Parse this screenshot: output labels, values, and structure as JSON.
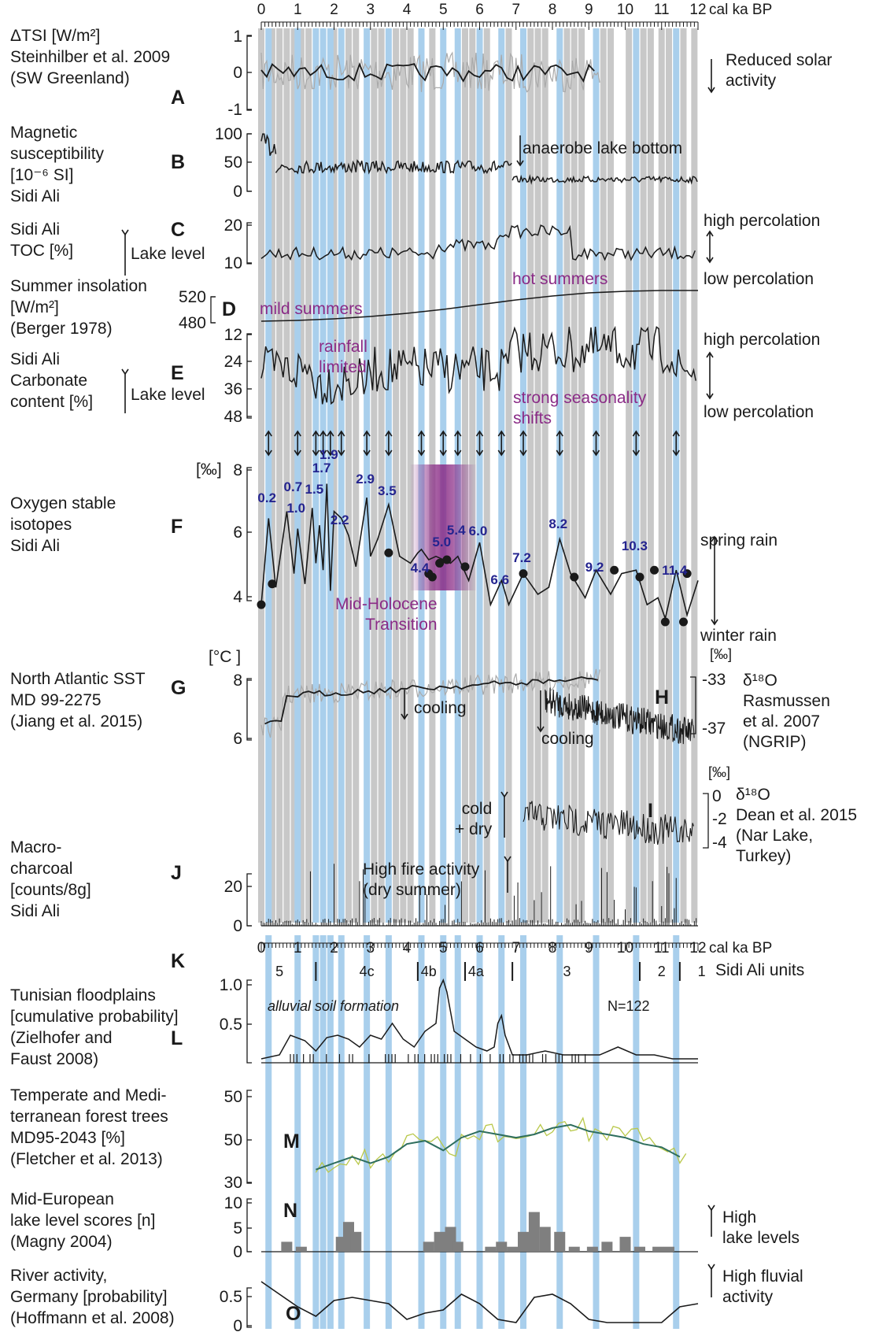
{
  "axis": {
    "unit_top": "cal ka BP",
    "unit_bottom": "cal ka BP",
    "ticks": [
      "0",
      "1",
      "2",
      "3",
      "4",
      "5",
      "6",
      "7",
      "8",
      "9",
      "10",
      "11",
      "12"
    ]
  },
  "colors": {
    "blue_band": "#a9cfec",
    "grey_band": "#c8c8c8",
    "purple": "#8a2b86",
    "isotope_label": "#24248f",
    "forest_mean": "#2e6e5e",
    "forest_raw": "#b9c84a",
    "lake_bars": "#7f7f7f"
  },
  "bands": {
    "blue_ka": [
      0.2,
      1.0,
      1.5,
      1.7,
      1.9,
      2.2,
      2.9,
      3.5,
      4.4,
      5.0,
      5.4,
      6.0,
      6.6,
      7.2,
      8.2,
      9.2,
      10.3,
      11.4
    ],
    "grey_ka": [
      0.0,
      0.3,
      0.5,
      0.7,
      0.9,
      1.1,
      1.3,
      2.0,
      2.4,
      2.6,
      3.1,
      3.3,
      3.7,
      3.9,
      4.1,
      4.7,
      5.6,
      5.8,
      6.2,
      6.8,
      7.4,
      7.6,
      7.8,
      8.4,
      8.6,
      8.8,
      9.4,
      9.6,
      10.1,
      10.5,
      10.7,
      11.0,
      11.2,
      11.6,
      11.9
    ],
    "arrows_ka": [
      0.2,
      1.0,
      1.5,
      1.7,
      1.9,
      2.2,
      2.9,
      3.5,
      4.4,
      5.0,
      5.4,
      6.0,
      6.6,
      7.2,
      8.2,
      9.2,
      10.3,
      11.4
    ]
  },
  "panels": {
    "A": {
      "letter": "A",
      "label": "ΔTSI  [W/m²]\nSteinhilber et al. 2009\n(SW Greenland)",
      "ticks": [
        "1",
        "0",
        "-1"
      ],
      "note": "Reduced solar\nactivity"
    },
    "B": {
      "letter": "B",
      "label": "Magnetic\nsusceptibility\n[10⁻⁶ SI]\nSidi Ali",
      "ticks": [
        "100",
        "50",
        "0"
      ],
      "note": "anaerobe lake bottom"
    },
    "C": {
      "letter": "C",
      "label": "Sidi Ali\nTOC [%]",
      "lake_level": "Lake level",
      "ticks": [
        "20",
        "10"
      ],
      "high": "high percolation",
      "low": "low percolation"
    },
    "D": {
      "letter": "D",
      "label": "Summer insolation\n[W/m²]\n(Berger 1978)",
      "ticks": [
        "520",
        "480"
      ],
      "mild": "mild summers",
      "hot": "hot summers"
    },
    "E": {
      "letter": "E",
      "label": "Sidi Ali\nCarbonate\ncontent [%]",
      "lake_level": "Lake level",
      "ticks": [
        "12",
        "24",
        "36",
        "48"
      ],
      "rainfall": "rainfall\nlimited",
      "seasonality": "strong seasonality\nshifts",
      "high": "high percolation",
      "low": "low percolation"
    },
    "F": {
      "letter": "F",
      "label": "Oxygen stable\nisotopes\nSidi Ali",
      "unit": "[‰]",
      "ticks": [
        "8",
        "6",
        "4"
      ],
      "spring": "spring rain",
      "winter": "winter rain",
      "mht": "Mid-Holocene\nTransition",
      "event_labels": [
        "0.2",
        "0.7",
        "1.0",
        "1.5",
        "1.7",
        "1.9",
        "2.2",
        "2.9",
        "3.5",
        "4.4",
        "5.0",
        "5.4",
        "6.0",
        "6.6",
        "7.2",
        "8.2",
        "9.2",
        "10.3",
        "11.4"
      ]
    },
    "G": {
      "letter": "G",
      "label": "North Atlantic SST\nMD 99-2275\n(Jiang et al. 2015)",
      "unit": "[°C ]",
      "ticks": [
        "8",
        "6"
      ],
      "cooling": "cooling"
    },
    "H": {
      "letter": "H",
      "unit": "[‰]",
      "ticks": [
        "-33",
        "-37"
      ],
      "symbol": "δ¹⁸O",
      "source": "Rasmussen\net al. 2007\n(NGRIP)",
      "cooling": "cooling"
    },
    "I": {
      "letter": "I",
      "unit": "[‰]",
      "ticks": [
        "0",
        "-2",
        "-4"
      ],
      "symbol": "δ¹⁸O",
      "source": "Dean et al. 2015\n(Nar Lake,\nTurkey)",
      "cold": "cold\n+ dry"
    },
    "J": {
      "letter": "J",
      "label": "Macro-\ncharcoal\n[counts/8g]\nSidi Ali",
      "ticks": [
        "20",
        "0"
      ],
      "fire": "High fire activity\n(dry summer)"
    },
    "K": {
      "letter": "K",
      "units_title": "Sidi Ali units",
      "units": [
        "5",
        "4c",
        "4b",
        "4a",
        "3",
        "2",
        "1"
      ]
    },
    "L": {
      "letter": "L",
      "label": "Tunisian floodplains\n[cumulative probability]\n(Zielhofer and\nFaust 2008)",
      "ticks": [
        "1.0",
        "0.5"
      ],
      "alluvial": "alluvial soil formation",
      "n": "N=122"
    },
    "M": {
      "letter": "M",
      "label": "Temperate and Medi-\nterranean forest trees\nMD95-2043 [%]\n(Fletcher et al. 2013)",
      "ticks": [
        "50",
        "50",
        "30"
      ]
    },
    "N": {
      "letter": "N",
      "label": "Mid-European\nlake level scores [n]\n(Magny 2004)",
      "ticks": [
        "10",
        "5",
        "0"
      ],
      "note": "High\nlake levels"
    },
    "O": {
      "letter": "O",
      "label": "River activity,\nGermany [probability]\n(Hoffmann et al. 2008)",
      "ticks": [
        "0.5",
        "0"
      ],
      "note": "High fluvial\nactivity"
    }
  },
  "chart_data": [
    {
      "type": "line",
      "panel": "F",
      "title": "",
      "xlabel": "cal ka BP",
      "ylabel": "[‰]",
      "ylim": [
        3.6,
        8.0
      ],
      "x": [
        0.0,
        0.2,
        0.4,
        0.7,
        0.9,
        1.0,
        1.2,
        1.4,
        1.5,
        1.6,
        1.7,
        1.8,
        1.9,
        2.0,
        2.2,
        2.4,
        2.6,
        2.9,
        3.0,
        3.2,
        3.5,
        3.8,
        4.1,
        4.3,
        4.4,
        4.6,
        4.8,
        5.0,
        5.2,
        5.4,
        5.7,
        6.0,
        6.3,
        6.6,
        6.8,
        7.2,
        7.6,
        7.9,
        8.2,
        8.5,
        8.9,
        9.2,
        9.6,
        9.9,
        10.3,
        10.6,
        10.9,
        11.1,
        11.4,
        11.7,
        12.0
      ],
      "y": [
        4.1,
        6.6,
        4.6,
        6.8,
        5.0,
        6.3,
        4.7,
        6.9,
        5.3,
        6.4,
        5.1,
        7.6,
        4.5,
        6.8,
        6.6,
        6.1,
        5.2,
        7.2,
        5.5,
        6.0,
        7.0,
        5.5,
        5.3,
        5.6,
        5.7,
        5.4,
        5.5,
        5.4,
        5.3,
        5.5,
        4.8,
        5.9,
        4.1,
        4.8,
        4.1,
        5.0,
        4.4,
        4.6,
        6.0,
        5.0,
        4.3,
        5.1,
        4.4,
        5.0,
        5.1,
        4.1,
        4.3,
        3.7,
        5.1,
        3.8,
        4.8
      ],
      "markers_x": [
        0.0,
        0.3,
        4.7,
        5.1,
        5.6,
        3.5,
        4.6,
        4.9,
        7.2,
        8.6,
        9.7,
        10.4,
        10.8,
        11.1,
        11.6,
        11.7
      ],
      "markers_y": [
        4.1,
        4.7,
        4.9,
        5.4,
        5.2,
        5.6,
        5.0,
        5.3,
        5.0,
        4.9,
        5.1,
        4.9,
        5.1,
        3.6,
        3.6,
        5.0
      ]
    },
    {
      "type": "line",
      "panel": "D",
      "title": "",
      "xlabel": "cal ka BP",
      "ylabel": "[W/m²]",
      "ylim": [
        470,
        530
      ],
      "x": [
        0,
        1,
        2,
        3,
        4,
        5,
        6,
        7,
        8,
        9,
        10,
        11,
        12
      ],
      "y": [
        482,
        483,
        485,
        488,
        492,
        497,
        503,
        509,
        514,
        518,
        520,
        521,
        521
      ]
    },
    {
      "type": "line",
      "panel": "L",
      "title": "",
      "xlabel": "cal ka BP",
      "ylabel": "cumulative probability",
      "ylim": [
        0,
        1.1
      ],
      "x": [
        0,
        0.5,
        0.8,
        1.2,
        1.5,
        1.8,
        2.1,
        2.4,
        2.7,
        3.0,
        3.3,
        3.6,
        3.9,
        4.2,
        4.5,
        4.8,
        4.9,
        5.0,
        5.1,
        5.3,
        5.6,
        5.9,
        6.2,
        6.4,
        6.5,
        6.6,
        6.7,
        6.9,
        7.3,
        7.8,
        8.3,
        8.8,
        9.3,
        9.8,
        10.3,
        10.8,
        11.3,
        11.8,
        12.0
      ],
      "y": [
        0.05,
        0.1,
        0.35,
        0.28,
        0.15,
        0.32,
        0.35,
        0.3,
        0.2,
        0.35,
        0.3,
        0.5,
        0.3,
        0.2,
        0.4,
        0.5,
        0.95,
        1.05,
        0.9,
        0.4,
        0.3,
        0.2,
        0.15,
        0.2,
        0.5,
        0.6,
        0.35,
        0.1,
        0.1,
        0.15,
        0.1,
        0.1,
        0.1,
        0.2,
        0.1,
        0.1,
        0.05,
        0.05,
        0.05
      ]
    },
    {
      "type": "line",
      "panel": "M",
      "title": "",
      "xlabel": "cal ka BP",
      "ylabel": "[%]",
      "ylim": [
        30,
        60
      ],
      "x": [
        1.5,
        2.0,
        2.5,
        3.0,
        3.5,
        4.0,
        4.5,
        5.0,
        5.5,
        6.0,
        6.5,
        7.0,
        7.5,
        8.0,
        8.5,
        9.0,
        9.5,
        10.0,
        10.5,
        11.0,
        11.5
      ],
      "y": [
        34,
        36,
        38,
        36,
        38,
        42,
        43,
        40,
        44,
        46,
        45,
        44,
        45,
        47,
        48,
        46,
        45,
        44,
        42,
        41,
        38
      ]
    },
    {
      "type": "bar",
      "panel": "N",
      "title": "",
      "xlabel": "cal ka BP",
      "ylabel": "lake level scores [n]",
      "ylim": [
        0,
        10
      ],
      "x": [
        0.7,
        1.1,
        2.2,
        2.4,
        2.6,
        4.6,
        4.9,
        5.2,
        5.4,
        6.3,
        6.6,
        6.9,
        7.2,
        7.5,
        7.8,
        8.2,
        8.6,
        9.1,
        9.5,
        10.0,
        10.4,
        10.9,
        11.2
      ],
      "values": [
        2,
        1,
        3,
        6,
        4,
        2,
        4,
        5,
        2,
        1,
        2,
        1,
        4,
        8,
        5,
        4,
        1,
        1,
        2,
        3,
        1,
        1,
        1
      ]
    },
    {
      "type": "line",
      "panel": "O",
      "title": "",
      "xlabel": "cal ka BP",
      "ylabel": "probability",
      "ylim": [
        0,
        0.8
      ],
      "x": [
        0,
        0.5,
        1.0,
        1.5,
        2.0,
        2.5,
        3.0,
        3.5,
        4.0,
        4.5,
        5.0,
        5.5,
        6.0,
        6.5,
        7.0,
        7.5,
        8.0,
        8.5,
        9.0,
        9.5,
        10.0,
        10.5,
        11.0,
        11.5,
        12.0
      ],
      "y": [
        0.7,
        0.5,
        0.3,
        0.15,
        0.4,
        0.45,
        0.4,
        0.35,
        0.1,
        0.2,
        0.25,
        0.5,
        0.35,
        0.1,
        0.05,
        0.45,
        0.5,
        0.35,
        0.1,
        0.05,
        0.05,
        0.05,
        0.05,
        0.3,
        0.35
      ]
    }
  ]
}
